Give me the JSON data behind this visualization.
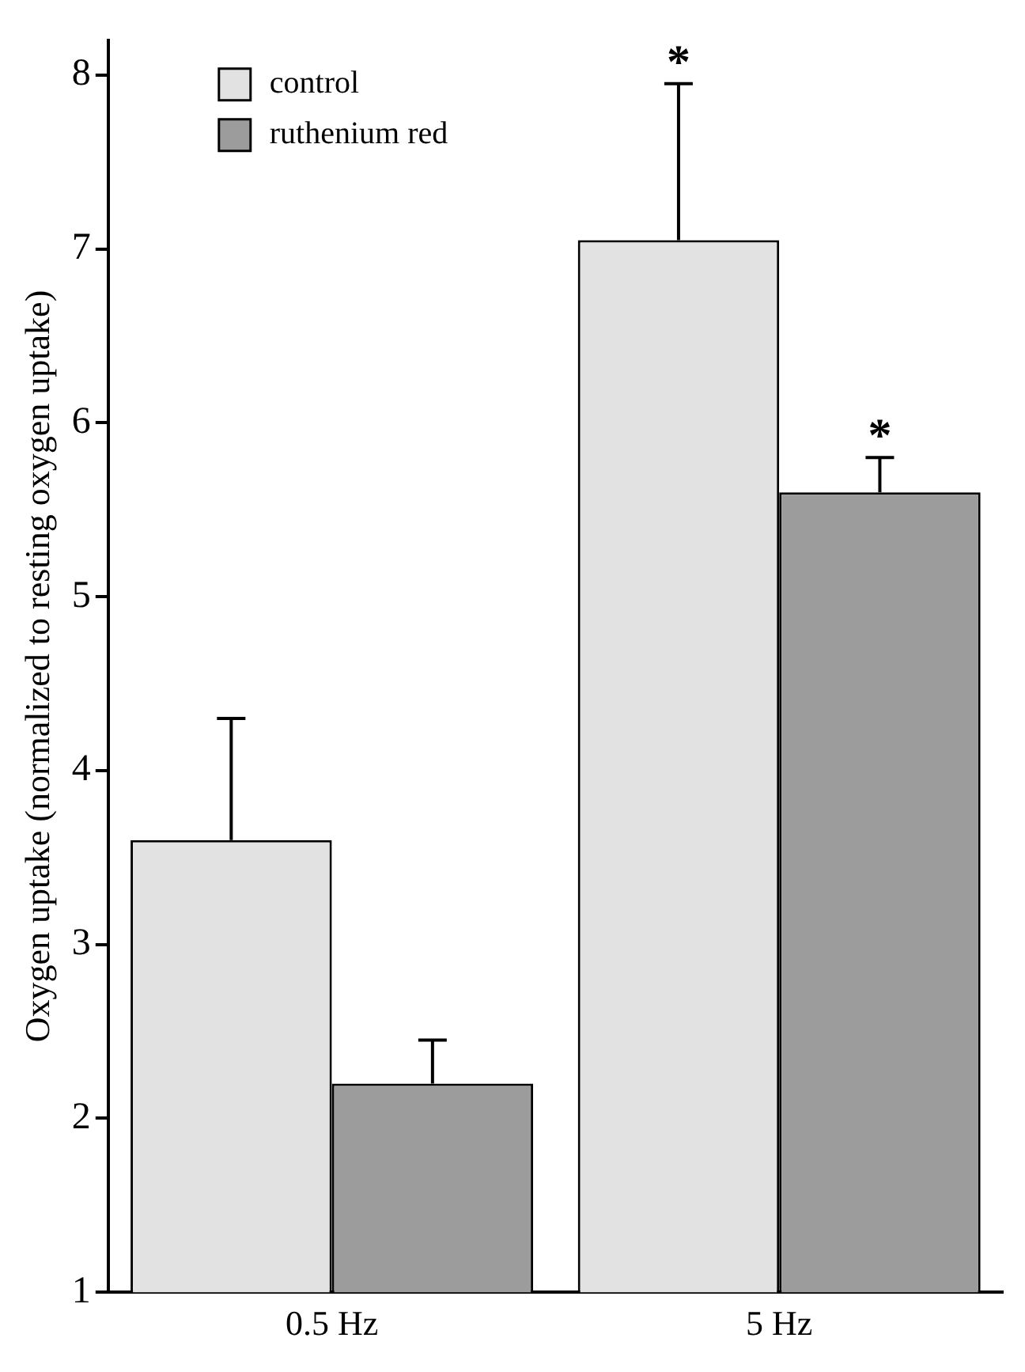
{
  "chart_data": {
    "type": "bar",
    "ylabel": "Oxygen uptake (normalized to resting oxygen uptake)",
    "categories": [
      "0.5 Hz",
      "5 Hz"
    ],
    "series": [
      {
        "name": "control",
        "color": "#e2e2e2",
        "values": [
          3.6,
          7.05
        ],
        "errors": [
          [
            3.6,
            4.3
          ],
          [
            7.05,
            7.95
          ]
        ]
      },
      {
        "name": "ruthenium red",
        "color": "#9c9c9c",
        "values": [
          2.2,
          5.6
        ],
        "errors": [
          [
            2.2,
            2.45
          ],
          [
            5.6,
            5.8
          ]
        ]
      }
    ],
    "ylim": [
      1,
      8.2
    ],
    "yticks": [
      1,
      2,
      3,
      4,
      5,
      6,
      7,
      8
    ],
    "grid": false,
    "legend": "top left",
    "annotations": [
      "*",
      "*"
    ]
  }
}
